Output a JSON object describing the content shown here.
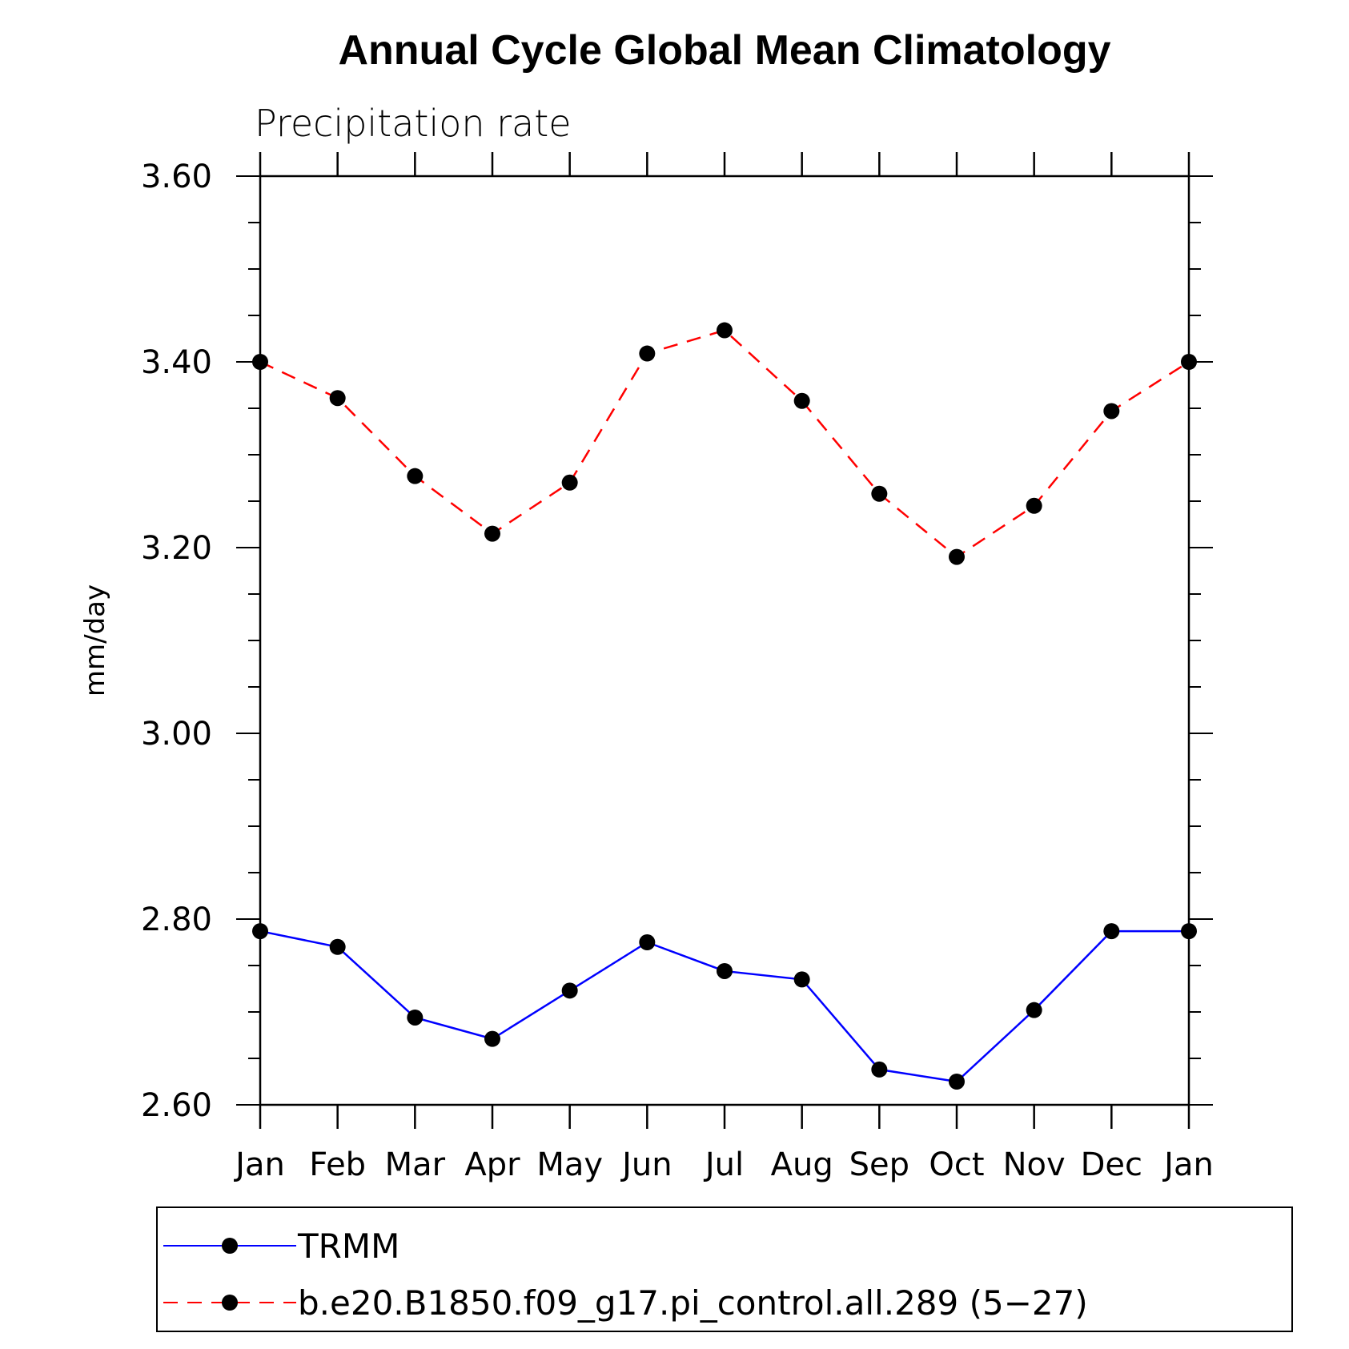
{
  "chart_data": {
    "type": "line",
    "title": "Annual Cycle Global Mean Climatology",
    "subtitle": "Precipitation rate",
    "xlabel": "",
    "ylabel": "mm/day",
    "categories": [
      "Jan",
      "Feb",
      "Mar",
      "Apr",
      "May",
      "Jun",
      "Jul",
      "Aug",
      "Sep",
      "Oct",
      "Nov",
      "Dec",
      "Jan"
    ],
    "ylim": [
      2.6,
      3.6
    ],
    "yticks": [
      "2.60",
      "2.80",
      "3.00",
      "3.20",
      "3.40",
      "3.60"
    ],
    "grid": false,
    "legend_position": "bottom",
    "series": [
      {
        "name": "TRMM",
        "color": "#0000ff",
        "dash": "solid",
        "marker": "filled-circle",
        "values": [
          2.787,
          2.77,
          2.694,
          2.671,
          2.723,
          2.775,
          2.744,
          2.735,
          2.638,
          2.625,
          2.702,
          2.787,
          2.787
        ]
      },
      {
        "name": "b.e20.B1850.f09_g17.pi_control.all.289 (5−27)",
        "color": "#ff0000",
        "dash": "dashed",
        "marker": "filled-circle",
        "values": [
          3.4,
          3.361,
          3.277,
          3.215,
          3.27,
          3.409,
          3.434,
          3.358,
          3.258,
          3.19,
          3.245,
          3.347,
          3.4
        ]
      }
    ]
  }
}
